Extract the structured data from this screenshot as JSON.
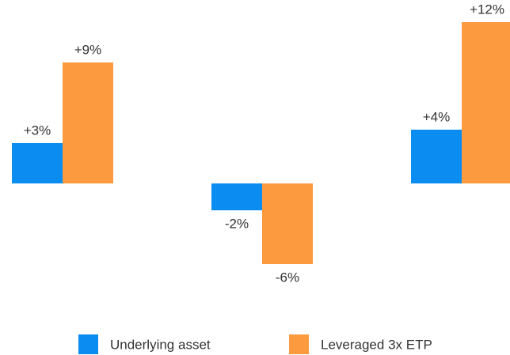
{
  "chart_data": {
    "type": "bar",
    "categories": [
      null,
      null,
      null
    ],
    "series": [
      {
        "name": "Underlying asset",
        "color": "#0a8cf0",
        "values": [
          3,
          -2,
          4
        ],
        "value_labels": [
          "+3%",
          "-2%",
          "+4%"
        ]
      },
      {
        "name": "Leveraged 3x ETP",
        "color": "#fb9a3f",
        "values": [
          9,
          -6,
          12
        ],
        "value_labels": [
          "+9%",
          "-6%",
          "+12%"
        ]
      }
    ],
    "ylim": [
      -8,
      13
    ],
    "legend": "bottom"
  }
}
